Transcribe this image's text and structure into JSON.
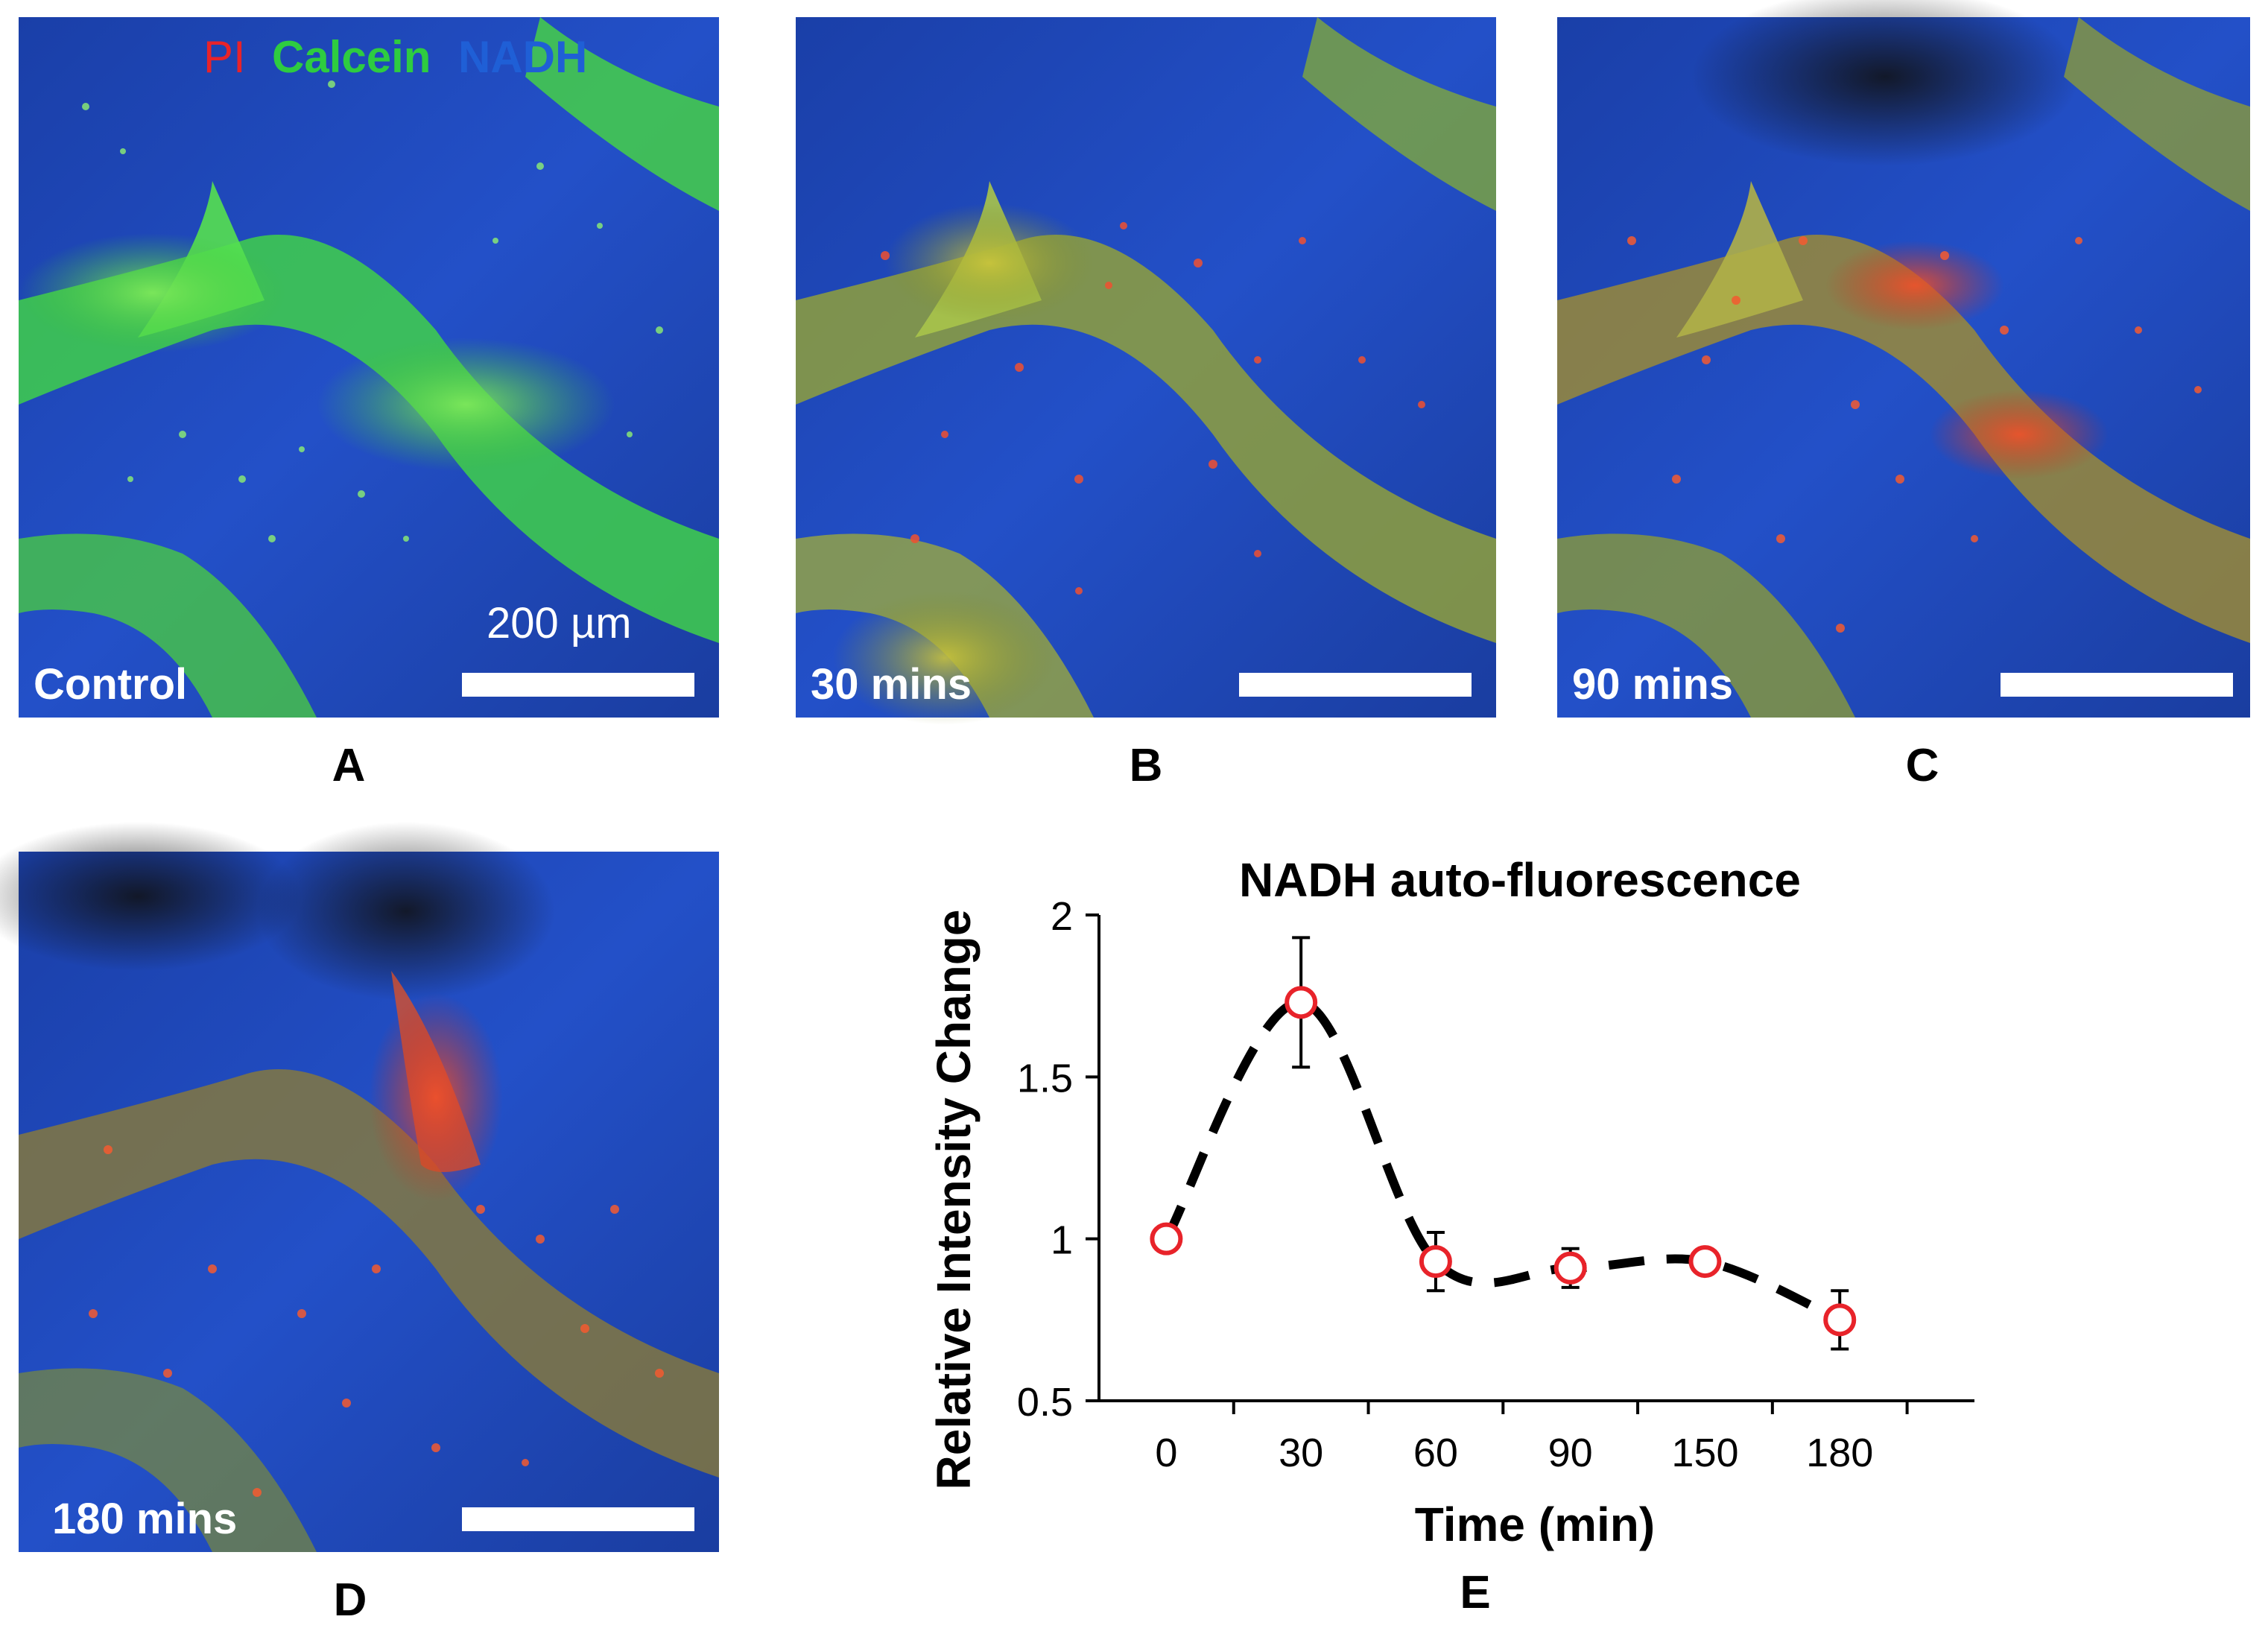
{
  "channel_legend": {
    "pi": "PI",
    "calcein": "Calcein",
    "nadh": "NADH",
    "colors": {
      "pi": "#e8232a",
      "calcein": "#2ecc40",
      "nadh": "#1f5fd6"
    }
  },
  "panels": {
    "A": {
      "letter": "A",
      "label": "Control",
      "scale_bar_text": "200 µm"
    },
    "B": {
      "letter": "B",
      "label": "30 mins"
    },
    "C": {
      "letter": "C",
      "label": "90 mins"
    },
    "D": {
      "letter": "D",
      "label": "180 mins"
    },
    "E": {
      "letter": "E"
    }
  },
  "chart_data": {
    "type": "line",
    "title": "NADH auto-fluorescence",
    "xlabel": "Time (min)",
    "ylabel": "Relative Intensity Change",
    "categories": [
      "0",
      "30",
      "60",
      "90",
      "150",
      "180"
    ],
    "values": [
      1.0,
      1.73,
      0.93,
      0.91,
      0.93,
      0.75
    ],
    "error": [
      0.0,
      0.2,
      0.09,
      0.06,
      0.0,
      0.09
    ],
    "ylim": [
      0.5,
      2
    ],
    "yticks": [
      "0.5",
      "1",
      "1.5",
      "2"
    ],
    "grid": false,
    "colors": {
      "line": "#000000",
      "marker_edge": "#e8232a",
      "marker_fill": "#ffffff"
    }
  }
}
